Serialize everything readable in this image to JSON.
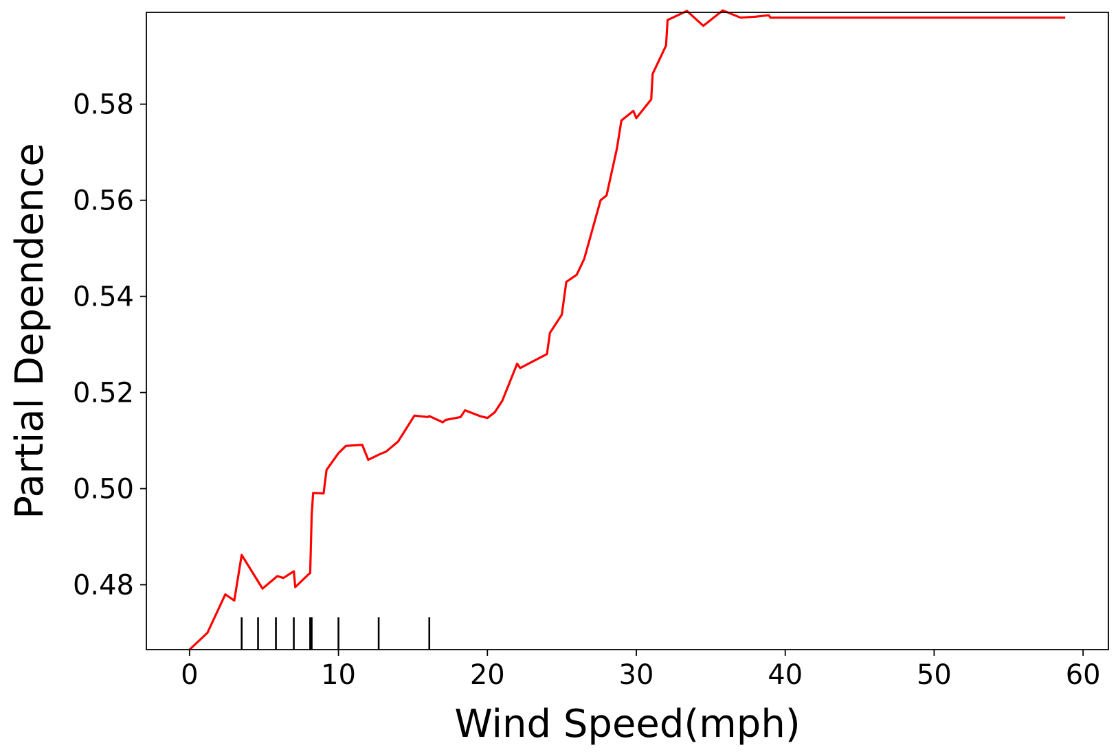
{
  "chart_data": {
    "type": "line",
    "title": "",
    "xlabel": "Wind Speed(mph)",
    "ylabel": "Partial Dependence",
    "xlim": [
      -2.9,
      61.7
    ],
    "ylim": [
      0.4665,
      0.5991
    ],
    "x_ticks": [
      0,
      10,
      20,
      30,
      40,
      50,
      60
    ],
    "x_tick_labels": [
      "0",
      "10",
      "20",
      "30",
      "40",
      "50",
      "60"
    ],
    "y_ticks": [
      0.48,
      0.5,
      0.52,
      0.54,
      0.56,
      0.58
    ],
    "y_tick_labels": [
      "0.48",
      "0.50",
      "0.52",
      "0.54",
      "0.56",
      "0.58"
    ],
    "grid": false,
    "line_color": "#ff0000",
    "rug_color": "#000000",
    "deciles": [
      3.5,
      4.6,
      5.8,
      7.0,
      8.1,
      8.2,
      10.0,
      12.7,
      16.1
    ],
    "series": [
      {
        "x": [
          0.0,
          1.2,
          2.4,
          3.0,
          3.5,
          4.9,
          5.9,
          6.3,
          7.0,
          7.1,
          8.0,
          8.1,
          8.2,
          8.3,
          9.0,
          9.2,
          10.0,
          10.5,
          11.6,
          12.0,
          12.8,
          13.2,
          14.0,
          15.1,
          16.0,
          16.1,
          17.0,
          17.2,
          18.2,
          18.5,
          19.5,
          20.0,
          20.5,
          21.0,
          22.0,
          22.2,
          24.0,
          24.2,
          25.0,
          25.3,
          26.0,
          26.5,
          27.6,
          28.0,
          28.7,
          29.0,
          29.8,
          30.0,
          31.0,
          31.1,
          32.0,
          32.1,
          33.4,
          34.5,
          35.8,
          36.2,
          37.0,
          38.0,
          38.9,
          39.0,
          58.8
        ],
        "y": [
          0.4665,
          0.47,
          0.478,
          0.4767,
          0.4862,
          0.4792,
          0.4818,
          0.4814,
          0.4828,
          0.4795,
          0.4822,
          0.4824,
          0.4945,
          0.4991,
          0.499,
          0.5039,
          0.5074,
          0.5089,
          0.5091,
          0.506,
          0.5072,
          0.5077,
          0.5098,
          0.5152,
          0.5149,
          0.5151,
          0.5138,
          0.5143,
          0.5149,
          0.5163,
          0.5151,
          0.5147,
          0.5159,
          0.5183,
          0.526,
          0.5251,
          0.528,
          0.5324,
          0.5362,
          0.543,
          0.5445,
          0.5478,
          0.56,
          0.561,
          0.5708,
          0.5766,
          0.5786,
          0.5771,
          0.581,
          0.5863,
          0.5922,
          0.5975,
          0.5994,
          0.5963,
          0.5995,
          0.599,
          0.598,
          0.5982,
          0.5985,
          0.598,
          0.598
        ]
      }
    ]
  }
}
